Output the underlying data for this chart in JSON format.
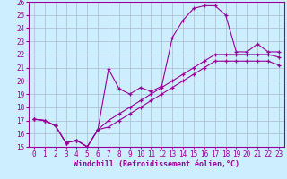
{
  "xlabel": "Windchill (Refroidissement éolien,°C)",
  "xlim": [
    -0.5,
    23.5
  ],
  "ylim": [
    15,
    26
  ],
  "xticks": [
    0,
    1,
    2,
    3,
    4,
    5,
    6,
    7,
    8,
    9,
    10,
    11,
    12,
    13,
    14,
    15,
    16,
    17,
    18,
    19,
    20,
    21,
    22,
    23
  ],
  "yticks": [
    15,
    16,
    17,
    18,
    19,
    20,
    21,
    22,
    23,
    24,
    25,
    26
  ],
  "line_color": "#990099",
  "bg_color": "#cceeff",
  "grid_color": "#aabbcc",
  "line1_x": [
    0,
    1,
    2,
    3,
    4,
    5,
    6,
    7,
    8,
    9,
    10,
    11,
    12,
    13,
    14,
    15,
    16,
    17,
    18,
    19,
    20,
    21,
    22,
    23
  ],
  "line1_y": [
    17.1,
    17.0,
    16.6,
    15.3,
    15.5,
    15.0,
    16.3,
    20.9,
    19.4,
    19.0,
    19.5,
    19.2,
    19.6,
    23.3,
    24.6,
    25.5,
    25.7,
    25.7,
    25.0,
    22.2,
    22.2,
    22.8,
    22.2,
    22.2
  ],
  "line2_x": [
    0,
    1,
    2,
    3,
    4,
    5,
    6,
    7,
    8,
    9,
    10,
    11,
    12,
    13,
    14,
    15,
    16,
    17,
    18,
    19,
    20,
    21,
    22,
    23
  ],
  "line2_y": [
    17.1,
    17.0,
    16.6,
    15.3,
    15.5,
    15.0,
    16.3,
    17.0,
    17.5,
    18.0,
    18.5,
    19.0,
    19.5,
    20.0,
    20.5,
    21.0,
    21.5,
    22.0,
    22.0,
    22.0,
    22.0,
    22.0,
    22.0,
    21.8
  ],
  "line3_x": [
    0,
    1,
    2,
    3,
    4,
    5,
    6,
    7,
    8,
    9,
    10,
    11,
    12,
    13,
    14,
    15,
    16,
    17,
    18,
    19,
    20,
    21,
    22,
    23
  ],
  "line3_y": [
    17.1,
    17.0,
    16.6,
    15.3,
    15.5,
    15.0,
    16.3,
    16.5,
    17.0,
    17.5,
    18.0,
    18.5,
    19.0,
    19.5,
    20.0,
    20.5,
    21.0,
    21.5,
    21.5,
    21.5,
    21.5,
    21.5,
    21.5,
    21.2
  ],
  "font_size_label": 6,
  "font_size_tick": 5.5,
  "marker": "+"
}
